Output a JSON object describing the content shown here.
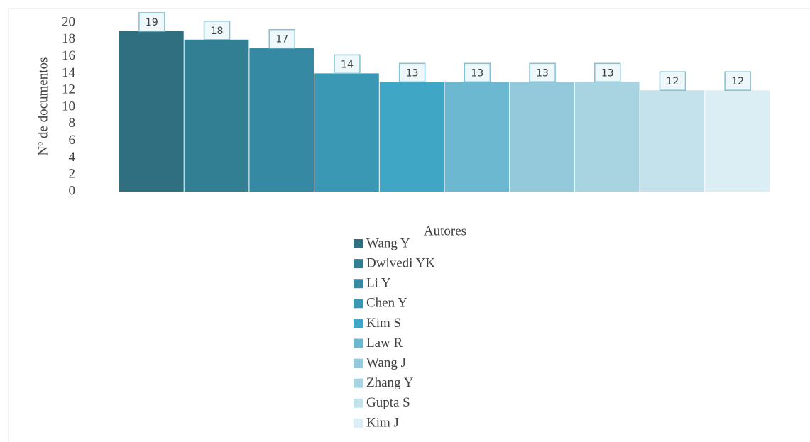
{
  "chart_data": {
    "type": "bar",
    "categories": [
      "Wang Y",
      "Dwivedi YK",
      "Li Y",
      "Chen Y",
      "Kim S",
      "Law R",
      "Wang J",
      "Zhang Y",
      "Gupta S",
      "Kim J"
    ],
    "values": [
      19,
      18,
      17,
      14,
      13,
      13,
      13,
      13,
      12,
      12
    ],
    "colors": [
      "#2f6f80",
      "#327f93",
      "#3689a3",
      "#3a98b4",
      "#3fa7c5",
      "#6db8d1",
      "#94c9db",
      "#a8d4e2",
      "#c4e2ec",
      "#dbeef4"
    ],
    "ylabel": "Nº de documentos",
    "xlabel": "Autores",
    "ylim": [
      0,
      20
    ],
    "yticks": [
      0,
      2,
      4,
      6,
      8,
      10,
      12,
      14,
      16,
      18,
      20
    ],
    "legend": "bottom"
  }
}
